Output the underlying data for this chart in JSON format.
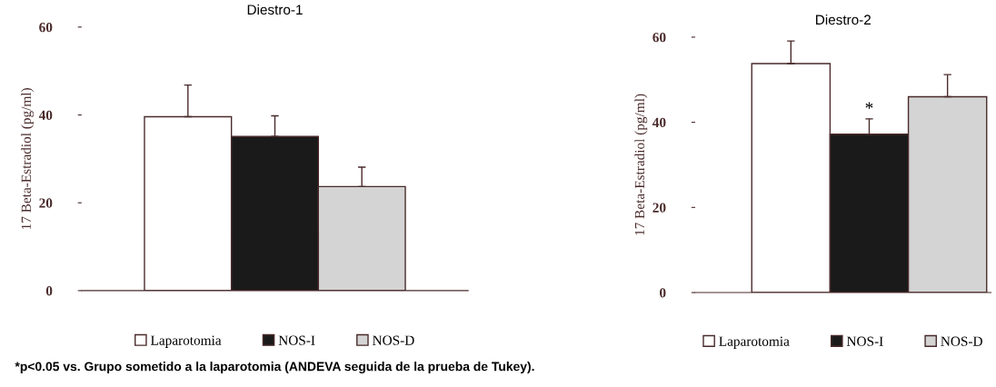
{
  "chart_data": [
    {
      "type": "bar",
      "title": "Diestro-1",
      "ylabel": "17 Beta-Estradiol (pg/ml)",
      "categories": [
        null
      ],
      "ylim": [
        0,
        60
      ],
      "yticks": [
        0,
        20,
        40,
        60
      ],
      "legend": "bottom",
      "grid": false,
      "series": [
        {
          "name": "Laparotomia",
          "color": "#ffffff",
          "values": [
            39.6
          ],
          "errors": [
            7.2
          ]
        },
        {
          "name": "NOS-I",
          "color": "#1a1a1a",
          "values": [
            35.1
          ],
          "errors": [
            4.7
          ]
        },
        {
          "name": "NOS-D",
          "color": "#d4d4d4",
          "values": [
            23.7
          ],
          "errors": [
            4.4
          ]
        }
      ]
    },
    {
      "type": "bar",
      "title": "Diestro-2",
      "ylabel": "17 Beta-Estradiol (pg/ml)",
      "categories": [
        null
      ],
      "ylim": [
        0,
        60
      ],
      "yticks": [
        0,
        20,
        40,
        60
      ],
      "legend": "bottom",
      "grid": false,
      "series": [
        {
          "name": "Laparotomia",
          "color": "#ffffff",
          "values": [
            53.8
          ],
          "errors": [
            5.3
          ]
        },
        {
          "name": "NOS-I",
          "color": "#1a1a1a",
          "values": [
            37.2
          ],
          "errors": [
            3.6
          ],
          "value_labels": [
            "*"
          ]
        },
        {
          "name": "NOS-D",
          "color": "#d4d4d4",
          "values": [
            46.0
          ],
          "errors": [
            5.2
          ]
        }
      ],
      "annotations": [
        "*p<0.05 vs. Grupo sometido a la laparotomia (ANDEVA seguida de la prueba de Tukey)."
      ]
    }
  ]
}
